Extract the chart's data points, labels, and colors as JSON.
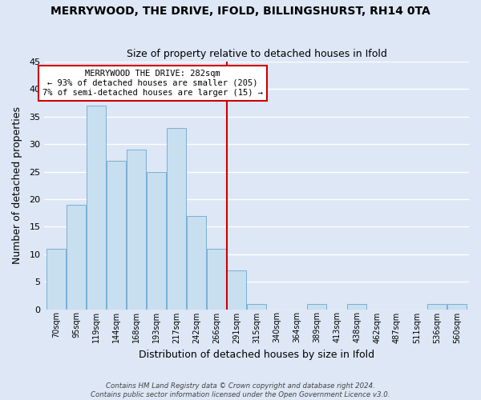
{
  "title": "MERRYWOOD, THE DRIVE, IFOLD, BILLINGSHURST, RH14 0TA",
  "subtitle": "Size of property relative to detached houses in Ifold",
  "xlabel": "Distribution of detached houses by size in Ifold",
  "ylabel": "Number of detached properties",
  "bar_color": "#c8dff0",
  "bar_edge_color": "#7bafd4",
  "bin_labels": [
    "70sqm",
    "95sqm",
    "119sqm",
    "144sqm",
    "168sqm",
    "193sqm",
    "217sqm",
    "242sqm",
    "266sqm",
    "291sqm",
    "315sqm",
    "340sqm",
    "364sqm",
    "389sqm",
    "413sqm",
    "438sqm",
    "462sqm",
    "487sqm",
    "511sqm",
    "536sqm",
    "560sqm"
  ],
  "bin_values": [
    11,
    19,
    37,
    27,
    29,
    25,
    33,
    17,
    11,
    7,
    1,
    0,
    0,
    1,
    0,
    1,
    0,
    0,
    0,
    1,
    1
  ],
  "ylim": [
    0,
    45
  ],
  "yticks": [
    0,
    5,
    10,
    15,
    20,
    25,
    30,
    35,
    40,
    45
  ],
  "vline_x": 8.5,
  "vline_color": "#cc0000",
  "annotation_text": "MERRYWOOD THE DRIVE: 282sqm\n← 93% of detached houses are smaller (205)\n7% of semi-detached houses are larger (15) →",
  "annotation_box_color": "#ffffff",
  "annotation_box_edge": "#cc0000",
  "footer_line1": "Contains HM Land Registry data © Crown copyright and database right 2024.",
  "footer_line2": "Contains public sector information licensed under the Open Government Licence v3.0.",
  "background_color": "#dde7f5",
  "plot_bg_color": "#dde7f5",
  "grid_color": "#ffffff"
}
